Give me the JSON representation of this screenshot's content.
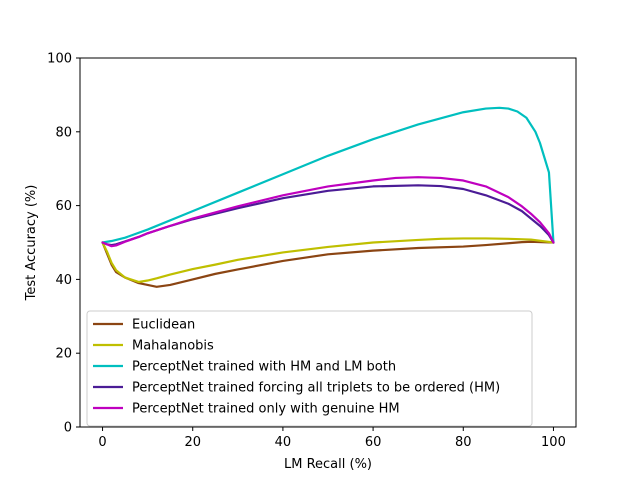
{
  "chart_data": {
    "type": "line",
    "title": "",
    "xlabel": "LM Recall (%)",
    "ylabel": "Test Accuracy (%)",
    "xlim": [
      -5,
      105
    ],
    "ylim": [
      0,
      100
    ],
    "xticks": [
      0,
      20,
      40,
      60,
      80,
      100
    ],
    "yticks": [
      0,
      20,
      40,
      60,
      80,
      100
    ],
    "grid": false,
    "legend_position": "lower-left",
    "series": [
      {
        "name": "Euclidean",
        "color": "#8B4513",
        "x": [
          0,
          1,
          2,
          3,
          5,
          8,
          10,
          12,
          15,
          20,
          25,
          30,
          40,
          50,
          60,
          70,
          80,
          85,
          90,
          93,
          95,
          100
        ],
        "y": [
          50,
          47,
          44,
          42,
          40.5,
          39,
          38.5,
          38,
          38.5,
          40,
          41.5,
          42.7,
          45,
          46.8,
          47.8,
          48.5,
          48.9,
          49.3,
          49.8,
          50.1,
          50.2,
          50
        ]
      },
      {
        "name": "Mahalanobis",
        "color": "#BFBF00",
        "x": [
          0,
          1,
          2,
          3,
          5,
          8,
          10,
          12,
          15,
          20,
          25,
          30,
          40,
          50,
          60,
          70,
          75,
          80,
          85,
          90,
          95,
          100
        ],
        "y": [
          50,
          47.5,
          44.5,
          42.5,
          40.5,
          39.3,
          39.7,
          40.3,
          41.3,
          42.8,
          44,
          45.3,
          47.3,
          48.8,
          50,
          50.7,
          51,
          51.1,
          51.1,
          51,
          50.8,
          50
        ]
      },
      {
        "name": "PerceptNet trained with HM and LM both",
        "color": "#00BFBF",
        "x": [
          0,
          2,
          5,
          10,
          20,
          30,
          40,
          50,
          60,
          70,
          80,
          85,
          88,
          90,
          92,
          94,
          96,
          97,
          98,
          99,
          100
        ],
        "y": [
          50,
          50.4,
          51.3,
          53.5,
          58.5,
          63.5,
          68.5,
          73.5,
          78,
          82,
          85.3,
          86.3,
          86.5,
          86.3,
          85.5,
          83.8,
          80,
          77,
          73,
          69,
          50
        ]
      },
      {
        "name": "PerceptNet trained forcing all triplets to be ordered (HM)",
        "color": "#4B1C96",
        "x": [
          0,
          1,
          2,
          3,
          5,
          8,
          10,
          15,
          20,
          30,
          40,
          50,
          60,
          70,
          75,
          80,
          85,
          90,
          93,
          95,
          97,
          98,
          99,
          100
        ],
        "y": [
          50,
          49.5,
          49.3,
          49.5,
          50.3,
          51.5,
          52.5,
          54.5,
          56.3,
          59.3,
          62,
          64,
          65.2,
          65.5,
          65.3,
          64.5,
          62.8,
          60.5,
          58.5,
          56.5,
          54.5,
          53.3,
          52,
          50
        ]
      },
      {
        "name": "PerceptNet trained only with genuine HM",
        "color": "#BF00BF",
        "x": [
          0,
          1,
          2,
          3,
          5,
          8,
          10,
          15,
          20,
          30,
          40,
          50,
          60,
          65,
          70,
          75,
          80,
          85,
          90,
          93,
          95,
          97,
          98,
          99,
          100
        ],
        "y": [
          50,
          49.5,
          49,
          49.2,
          50.2,
          51.5,
          52.5,
          54.5,
          56.5,
          59.8,
          62.8,
          65.2,
          66.8,
          67.5,
          67.7,
          67.5,
          66.8,
          65.2,
          62.3,
          59.8,
          57.8,
          55.5,
          54,
          52.5,
          50
        ]
      }
    ]
  }
}
